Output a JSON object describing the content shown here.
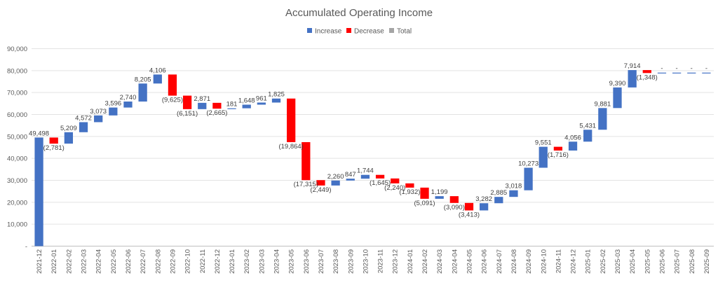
{
  "chart_data": {
    "type": "bar",
    "subtype": "waterfall",
    "title": "Accumulated Operating Income",
    "legend": {
      "position": "top",
      "entries": [
        {
          "name": "Increase",
          "color": "#4472c4"
        },
        {
          "name": "Decrease",
          "color": "#ff0000"
        },
        {
          "name": "Total",
          "color": "#a5a5a5"
        }
      ]
    },
    "ylim": [
      0,
      90000
    ],
    "yticks": [
      "-",
      "10,000",
      "20,000",
      "30,000",
      "40,000",
      "50,000",
      "60,000",
      "70,000",
      "80,000",
      "90,000"
    ],
    "ytick_values": [
      0,
      10000,
      20000,
      30000,
      40000,
      50000,
      60000,
      70000,
      80000,
      90000
    ],
    "grid": true,
    "categories": [
      "2021-12",
      "2022-01",
      "2022-02",
      "2022-03",
      "2022-04",
      "2022-05",
      "2022-06",
      "2022-07",
      "2022-08",
      "2022-09",
      "2022-10",
      "2022-11",
      "2022-12",
      "2023-01",
      "2023-02",
      "2023-03",
      "2023-04",
      "2023-05",
      "2023-06",
      "2023-07",
      "2023-08",
      "2023-09",
      "2023-10",
      "2023-11",
      "2023-12",
      "2024-01",
      "2024-02",
      "2024-03",
      "2024-04",
      "2024-05",
      "2024-06",
      "2024-07",
      "2024-08",
      "2024-09",
      "2024-10",
      "2024-11",
      "2024-12",
      "2025-01",
      "2025-02",
      "2025-03",
      "2025-04",
      "2025-05",
      "2025-06",
      "2025-07",
      "2025-08",
      "2025-09"
    ],
    "values": [
      49498,
      -2781,
      5209,
      4572,
      3073,
      3596,
      2740,
      8205,
      4106,
      -9625,
      -6151,
      2871,
      -2665,
      181,
      1648,
      961,
      1825,
      -19864,
      -17315,
      -2449,
      2260,
      847,
      1744,
      -1645,
      -2240,
      -1932,
      -5091,
      1199,
      -3090,
      -3413,
      3282,
      2885,
      3018,
      10273,
      9551,
      -1716,
      4056,
      5431,
      9881,
      9390,
      7914,
      -1348,
      0,
      0,
      0,
      0
    ],
    "data_labels": [
      "49,498",
      "(2,781)",
      "5,209",
      "4,572",
      "3,073",
      "3,596",
      "2,740",
      "8,205",
      "4,106",
      "(9,625)",
      "(6,151)",
      "2,871",
      "(2,665)",
      "181",
      "1,648",
      "961",
      "1,825",
      "(19,864)",
      "(17,315)",
      "(2,449)",
      "2,260",
      "847",
      "1,744",
      "(1,645)",
      "(2,240)",
      "(1,932)",
      "(5,091)",
      "1,199",
      "(3,090)",
      "(3,413)",
      "3,282",
      "2,885",
      "3,018",
      "10,273",
      "9,551",
      "(1,716)",
      "4,056",
      "5,431",
      "9,881",
      "9,390",
      "7,914",
      "(1,348)",
      "-",
      "-",
      "-",
      "-"
    ]
  }
}
